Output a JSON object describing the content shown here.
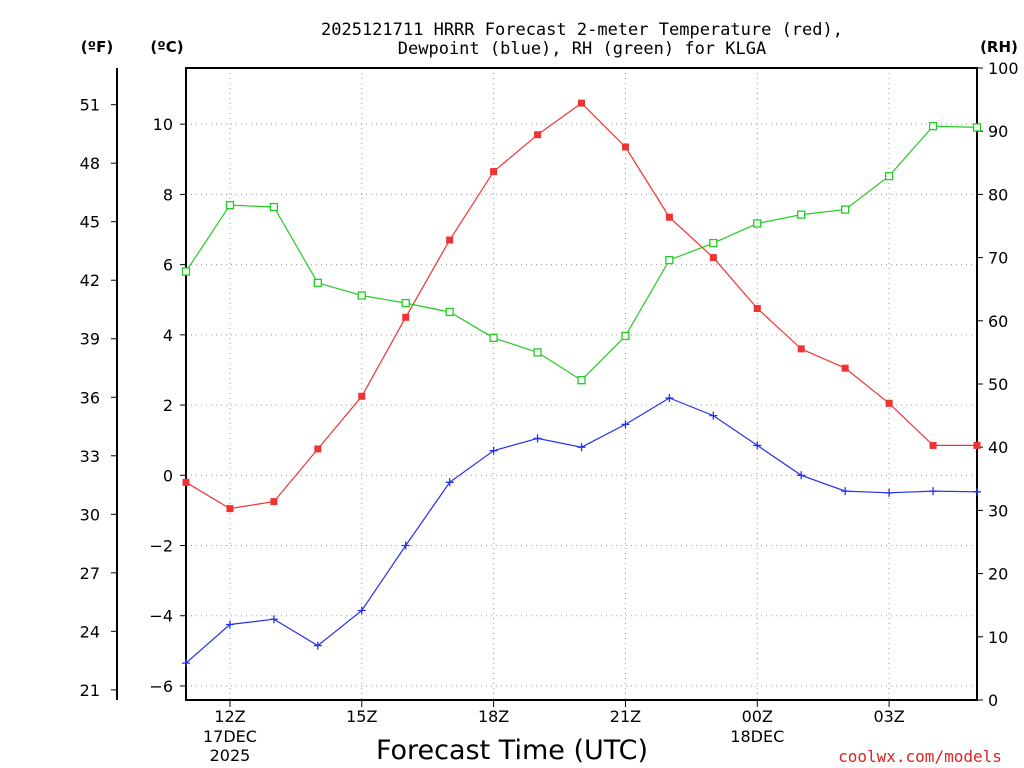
{
  "chart_data": {
    "type": "line",
    "title_line1": "2025121711 HRRR Forecast 2-meter Temperature (red),",
    "title_line2": "Dewpoint (blue), RH (green) for KLGA",
    "xlabel": "Forecast Time (UTC)",
    "watermark": "coolwx.com/models",
    "unit_labels": {
      "fahrenheit": "(ºF)",
      "celsius": "(ºC)",
      "rh": "(RH)"
    },
    "x_hours": [
      11,
      12,
      13,
      14,
      15,
      16,
      17,
      18,
      19,
      20,
      21,
      22,
      23,
      24,
      25,
      26,
      27,
      28,
      29
    ],
    "x_range": [
      11,
      29
    ],
    "x_ticks": [
      {
        "hour": 12,
        "label": "12Z",
        "sub1": "17DEC",
        "sub2": "2025"
      },
      {
        "hour": 15,
        "label": "15Z",
        "sub1": "",
        "sub2": ""
      },
      {
        "hour": 18,
        "label": "18Z",
        "sub1": "",
        "sub2": ""
      },
      {
        "hour": 21,
        "label": "21Z",
        "sub1": "",
        "sub2": ""
      },
      {
        "hour": 24,
        "label": "00Z",
        "sub1": "18DEC",
        "sub2": ""
      },
      {
        "hour": 27,
        "label": "03Z",
        "sub1": "",
        "sub2": ""
      }
    ],
    "celsius_range": [
      -6.4,
      11.6
    ],
    "celsius_ticks": [
      -6,
      -4,
      -2,
      0,
      2,
      4,
      6,
      8,
      10
    ],
    "celsius_tick_labels": [
      "−6",
      "−4",
      "−2",
      "0",
      "2",
      "4",
      "6",
      "8",
      "10"
    ],
    "fahrenheit_ticks": [
      21,
      24,
      27,
      30,
      33,
      36,
      39,
      42,
      45,
      48,
      51
    ],
    "rh_range": [
      0,
      100
    ],
    "rh_ticks": [
      0,
      10,
      20,
      30,
      40,
      50,
      60,
      70,
      80,
      90,
      100
    ],
    "series": [
      {
        "name": "2-meter Temperature",
        "unit": "C",
        "color": "#ee3333",
        "marker": "filled-square",
        "values": [
          -0.2,
          -0.95,
          -0.75,
          0.75,
          2.25,
          4.5,
          6.7,
          8.65,
          9.7,
          10.6,
          9.35,
          7.35,
          6.2,
          4.75,
          3.6,
          3.05,
          2.05,
          0.85,
          0.85
        ]
      },
      {
        "name": "Dewpoint",
        "unit": "C",
        "color": "#2233ee",
        "marker": "plus",
        "values": [
          -5.35,
          -4.25,
          -4.1,
          -4.85,
          -3.85,
          -2.0,
          -0.2,
          0.7,
          1.05,
          0.8,
          1.45,
          2.2,
          1.7,
          0.85,
          0.0,
          -0.45,
          -0.5,
          -0.45,
          -0.47
        ]
      },
      {
        "name": "RH",
        "unit": "%",
        "color": "#22cc22",
        "marker": "open-square",
        "values": [
          67.8,
          78.3,
          78.0,
          66.0,
          64.0,
          62.8,
          61.4,
          57.3,
          55.0,
          50.6,
          57.6,
          69.6,
          72.3,
          75.4,
          76.8,
          77.6,
          82.9,
          90.8,
          90.6
        ]
      }
    ]
  }
}
